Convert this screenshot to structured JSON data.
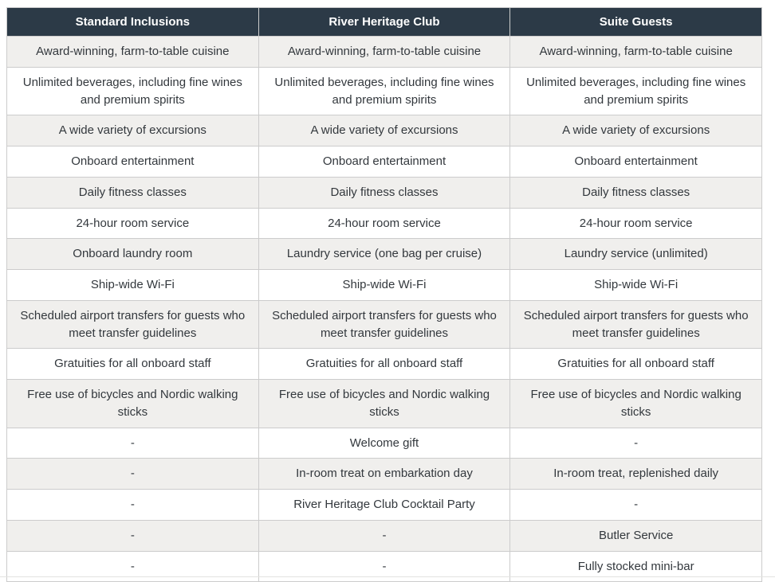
{
  "table": {
    "columns": [
      "Standard Inclusions",
      "River Heritage Club",
      "Suite Guests"
    ],
    "rows": [
      [
        "Award-winning, farm-to-table cuisine",
        "Award-winning, farm-to-table cuisine",
        "Award-winning, farm-to-table cuisine"
      ],
      [
        "Unlimited beverages, including fine wines and premium spirits",
        "Unlimited beverages, including fine wines and premium spirits",
        "Unlimited beverages, including fine wines and premium spirits"
      ],
      [
        "A wide variety of excursions",
        "A wide variety of excursions",
        "A wide variety of excursions"
      ],
      [
        "Onboard entertainment",
        "Onboard entertainment",
        "Onboard entertainment"
      ],
      [
        "Daily fitness classes",
        "Daily fitness classes",
        "Daily fitness classes"
      ],
      [
        "24-hour room service",
        "24-hour room service",
        "24-hour room service"
      ],
      [
        "Onboard laundry room",
        "Laundry service (one bag per cruise)",
        "Laundry service (unlimited)"
      ],
      [
        "Ship-wide Wi-Fi",
        "Ship-wide Wi-Fi",
        "Ship-wide Wi-Fi"
      ],
      [
        "Scheduled airport transfers for guests who meet transfer guidelines",
        "Scheduled airport transfers for guests who meet transfer guidelines",
        "Scheduled airport transfers for guests who meet transfer guidelines"
      ],
      [
        "Gratuities for all onboard staff",
        "Gratuities for all onboard staff",
        "Gratuities for all onboard staff"
      ],
      [
        "Free use of bicycles and Nordic walking sticks",
        "Free use of bicycles and Nordic walking sticks",
        "Free use of bicycles and Nordic walking sticks"
      ],
      [
        "-",
        "Welcome gift",
        "-"
      ],
      [
        "-",
        "In-room treat on embarkation day",
        "In-room treat, replenished daily"
      ],
      [
        "-",
        "River Heritage Club Cocktail Party",
        "-"
      ],
      [
        "-",
        "-",
        "Butler Service"
      ],
      [
        "-",
        "-",
        "Fully stocked mini-bar"
      ]
    ]
  },
  "colors": {
    "header_bg": "#2c3a47",
    "header_text": "#ffffff",
    "row_alt_bg": "#f0efed",
    "row_bg": "#ffffff",
    "border": "#cccccc",
    "text": "#33383d"
  }
}
